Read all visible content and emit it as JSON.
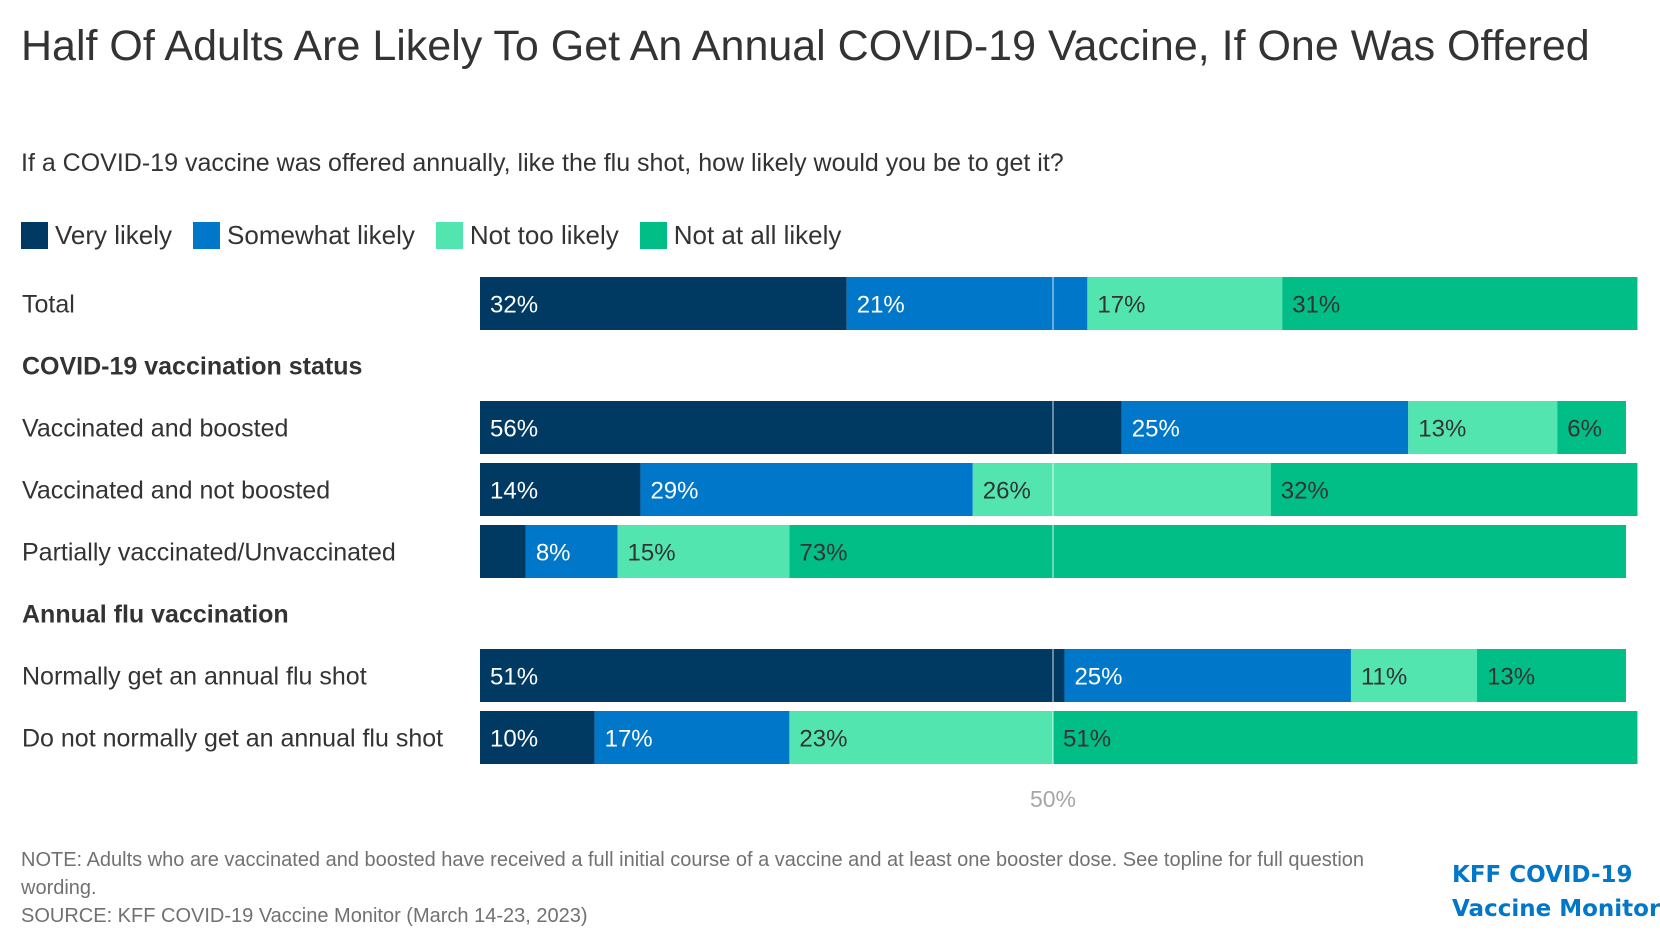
{
  "title": "Half Of Adults Are Likely To Get An Annual COVID-19 Vaccine, If One Was Offered",
  "subtitle": "If a COVID-19 vaccine was offered annually, like the flu shot, how likely would you be to get it?",
  "note": "NOTE: Adults who are vaccinated and boosted have received a full initial course of a vaccine and at least one booster dose. See topline for full question wording.",
  "source": "SOURCE: KFF COVID-19 Vaccine Monitor (March 14-23, 2023)",
  "brand": {
    "line1": "KFF COVID-19",
    "line2": "Vaccine Monitor"
  },
  "chart_data": {
    "type": "bar",
    "orientation": "horizontal",
    "stacked": true,
    "reference_line": {
      "value": 50,
      "label": "50%"
    },
    "series": [
      {
        "name": "Very likely",
        "color": "#003A63"
      },
      {
        "name": "Somewhat likely",
        "color": "#0077C8"
      },
      {
        "name": "Not too likely",
        "color": "#53E5B0"
      },
      {
        "name": "Not at all likely",
        "color": "#00BE85"
      }
    ],
    "rows": [
      {
        "kind": "bar",
        "label": "Total",
        "values": [
          32,
          21,
          17,
          31
        ]
      },
      {
        "kind": "header",
        "label": "COVID-19 vaccination status"
      },
      {
        "kind": "bar",
        "label": "Vaccinated and boosted",
        "values": [
          56,
          25,
          13,
          6
        ]
      },
      {
        "kind": "bar",
        "label": "Vaccinated and not boosted",
        "values": [
          14,
          29,
          26,
          32
        ]
      },
      {
        "kind": "bar",
        "label": "Partially vaccinated/Unvaccinated",
        "values": [
          4,
          8,
          15,
          73
        ],
        "labels": [
          "",
          "8%",
          "15%",
          "73%"
        ]
      },
      {
        "kind": "header",
        "label": "Annual flu vaccination"
      },
      {
        "kind": "bar",
        "label": "Normally get an annual flu shot",
        "values": [
          51,
          25,
          11,
          13
        ]
      },
      {
        "kind": "bar",
        "label": "Do not normally get an annual flu shot",
        "values": [
          10,
          17,
          23,
          51
        ]
      }
    ]
  }
}
